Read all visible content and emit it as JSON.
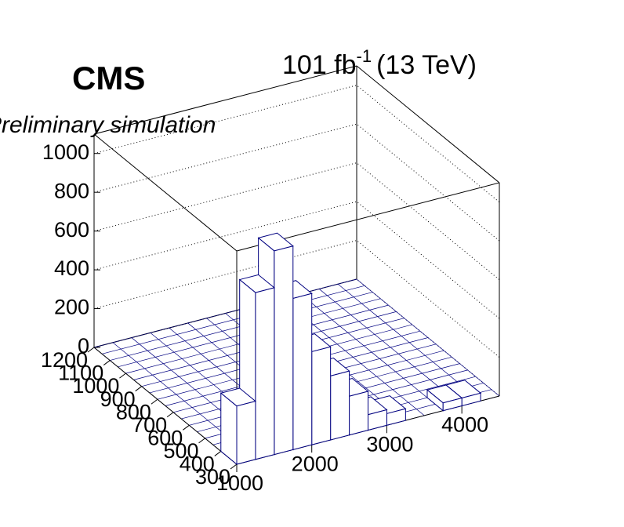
{
  "chart_data": {
    "type": "lego",
    "title": "CMS",
    "subtitle": "Preliminary simulation",
    "lumi": "101 fb",
    "lumi_exponent": "-1",
    "energy": "(13 TeV)",
    "xbins": [
      1000,
      1250,
      1500,
      1750,
      2000,
      2250,
      2500,
      2750,
      3000,
      3250,
      3500,
      3750,
      4000,
      4250,
      4500
    ],
    "ybin": [
      300,
      400
    ],
    "values": [
      300,
      860,
      1050,
      780,
      480,
      330,
      200,
      80,
      60,
      0,
      0,
      40,
      40,
      0
    ],
    "xlim": [
      1000,
      4500
    ],
    "xticks": [
      1000,
      2000,
      3000,
      4000
    ],
    "ylim": [
      300,
      1200
    ],
    "yticks": [
      300,
      400,
      500,
      600,
      700,
      800,
      900,
      1000,
      1100,
      1200
    ],
    "zlim": [
      0,
      1100
    ],
    "zticks": [
      0,
      200,
      400,
      600,
      800,
      1000
    ],
    "color": "#ffffff",
    "edge_color": "#000080",
    "grid": true
  }
}
